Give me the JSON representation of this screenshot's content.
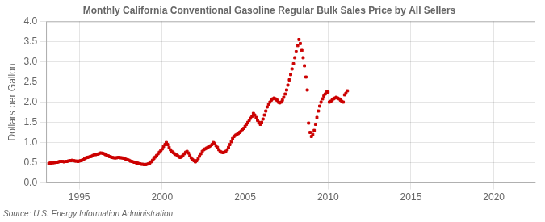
{
  "chart_data": {
    "type": "scatter",
    "title": "Monthly California Conventional Gasoline Regular Bulk Sales Price by All Sellers",
    "y_label": "Dollars per Gallon",
    "annotations": [
      "Source: U.S. Energy Information Administration"
    ],
    "color": "#cc0000",
    "marker": "square",
    "grid": true,
    "xlim": [
      1993.0,
      2022.5
    ],
    "ylim": [
      0.0,
      4.0
    ],
    "xticks": [
      1995,
      2000,
      2005,
      2010,
      2015,
      2020
    ],
    "yticks": [
      {
        "value": 0.0,
        "label": "0.0"
      },
      0.5,
      {
        "value": 1.0,
        "label": "1.0"
      },
      1.5,
      {
        "value": 2.0,
        "label": "2.0"
      },
      2.5,
      {
        "value": 3.0,
        "label": "3.0"
      },
      3.5,
      {
        "value": 4.0,
        "label": "4.0"
      }
    ],
    "x": [
      1993.17,
      1993.25,
      1993.33,
      1993.42,
      1993.5,
      1993.58,
      1993.67,
      1993.75,
      1993.83,
      1993.92,
      1994.0,
      1994.08,
      1994.17,
      1994.25,
      1994.33,
      1994.42,
      1994.5,
      1994.58,
      1994.67,
      1994.75,
      1994.83,
      1994.92,
      1995.0,
      1995.08,
      1995.17,
      1995.25,
      1995.33,
      1995.42,
      1995.5,
      1995.58,
      1995.67,
      1995.75,
      1995.83,
      1995.92,
      1996.0,
      1996.08,
      1996.17,
      1996.25,
      1996.33,
      1996.42,
      1996.5,
      1996.58,
      1996.67,
      1996.75,
      1996.83,
      1996.92,
      1997.0,
      1997.08,
      1997.17,
      1997.25,
      1997.33,
      1997.42,
      1997.5,
      1997.58,
      1997.67,
      1997.75,
      1997.83,
      1997.92,
      1998.0,
      1998.08,
      1998.17,
      1998.25,
      1998.33,
      1998.42,
      1998.5,
      1998.58,
      1998.67,
      1998.75,
      1998.83,
      1998.92,
      1999.0,
      1999.08,
      1999.17,
      1999.25,
      1999.33,
      1999.42,
      1999.5,
      1999.58,
      1999.67,
      1999.75,
      1999.83,
      1999.92,
      2000.0,
      2000.08,
      2000.17,
      2000.25,
      2000.33,
      2000.42,
      2000.5,
      2000.58,
      2000.67,
      2000.75,
      2000.83,
      2000.92,
      2001.0,
      2001.08,
      2001.17,
      2001.25,
      2001.33,
      2001.42,
      2001.5,
      2001.58,
      2001.67,
      2001.75,
      2001.83,
      2001.92,
      2002.0,
      2002.08,
      2002.17,
      2002.25,
      2002.33,
      2002.42,
      2002.5,
      2002.58,
      2002.67,
      2002.75,
      2002.83,
      2002.92,
      2003.0,
      2003.08,
      2003.17,
      2003.25,
      2003.33,
      2003.42,
      2003.5,
      2003.58,
      2003.67,
      2003.75,
      2003.83,
      2003.92,
      2004.0,
      2004.08,
      2004.17,
      2004.25,
      2004.33,
      2004.42,
      2004.5,
      2004.58,
      2004.67,
      2004.75,
      2004.83,
      2004.92,
      2005.0,
      2005.08,
      2005.17,
      2005.25,
      2005.33,
      2005.42,
      2005.5,
      2005.58,
      2005.67,
      2005.75,
      2005.83,
      2005.92,
      2006.0,
      2006.08,
      2006.17,
      2006.25,
      2006.33,
      2006.42,
      2006.5,
      2006.58,
      2006.67,
      2006.75,
      2006.83,
      2006.92,
      2007.0,
      2007.08,
      2007.17,
      2007.25,
      2007.33,
      2007.42,
      2007.5,
      2007.58,
      2007.67,
      2007.75,
      2007.83,
      2007.92,
      2008.0,
      2008.08,
      2008.17,
      2008.25,
      2008.33,
      2008.42,
      2008.5,
      2008.58,
      2008.67,
      2008.75,
      2008.83,
      2008.92,
      2009.0,
      2009.08,
      2009.17,
      2009.25,
      2009.33,
      2009.42,
      2009.5,
      2009.58,
      2009.67,
      2009.75,
      2009.83,
      2009.92,
      2010.0,
      2010.08,
      2010.17,
      2010.25,
      2010.33,
      2010.42,
      2010.5,
      2010.58,
      2010.67,
      2010.75,
      2010.83,
      2010.92,
      2011.0,
      2011.08,
      2011.17
    ],
    "values": [
      0.48,
      0.49,
      0.49,
      0.5,
      0.5,
      0.51,
      0.51,
      0.52,
      0.53,
      0.53,
      0.53,
      0.52,
      0.53,
      0.53,
      0.54,
      0.55,
      0.55,
      0.56,
      0.55,
      0.54,
      0.54,
      0.53,
      0.54,
      0.55,
      0.56,
      0.57,
      0.6,
      0.62,
      0.63,
      0.64,
      0.65,
      0.66,
      0.68,
      0.7,
      0.7,
      0.71,
      0.72,
      0.74,
      0.74,
      0.73,
      0.72,
      0.7,
      0.68,
      0.67,
      0.65,
      0.64,
      0.63,
      0.62,
      0.62,
      0.62,
      0.63,
      0.63,
      0.62,
      0.62,
      0.61,
      0.6,
      0.58,
      0.57,
      0.56,
      0.54,
      0.53,
      0.52,
      0.51,
      0.5,
      0.49,
      0.48,
      0.47,
      0.46,
      0.46,
      0.45,
      0.45,
      0.46,
      0.47,
      0.49,
      0.52,
      0.56,
      0.6,
      0.64,
      0.68,
      0.72,
      0.76,
      0.8,
      0.84,
      0.9,
      0.95,
      1.0,
      0.95,
      0.88,
      0.82,
      0.78,
      0.75,
      0.72,
      0.7,
      0.68,
      0.65,
      0.63,
      0.65,
      0.68,
      0.72,
      0.76,
      0.78,
      0.74,
      0.68,
      0.62,
      0.58,
      0.55,
      0.52,
      0.55,
      0.6,
      0.66,
      0.72,
      0.78,
      0.82,
      0.84,
      0.86,
      0.88,
      0.9,
      0.92,
      0.95,
      1.0,
      0.98,
      0.92,
      0.88,
      0.82,
      0.78,
      0.76,
      0.75,
      0.76,
      0.78,
      0.82,
      0.88,
      0.95,
      1.02,
      1.1,
      1.15,
      1.18,
      1.2,
      1.22,
      1.25,
      1.28,
      1.32,
      1.35,
      1.4,
      1.45,
      1.5,
      1.55,
      1.6,
      1.65,
      1.72,
      1.68,
      1.62,
      1.55,
      1.5,
      1.45,
      1.5,
      1.58,
      1.68,
      1.78,
      1.88,
      1.95,
      2.0,
      2.05,
      2.08,
      2.1,
      2.08,
      2.05,
      2.0,
      1.98,
      2.0,
      2.05,
      2.12,
      2.2,
      2.3,
      2.42,
      2.55,
      2.68,
      2.82,
      2.95,
      3.1,
      3.25,
      3.4,
      3.55,
      3.45,
      3.28,
      3.1,
      2.9,
      2.62,
      2.3,
      1.48,
      1.25,
      1.15,
      1.2,
      1.3,
      1.45,
      1.62,
      1.78,
      1.9,
      2.0,
      2.08,
      2.15,
      2.2,
      2.25,
      2.25,
      2.0,
      2.02,
      2.05,
      2.08,
      2.1,
      2.12,
      2.1,
      2.08,
      2.05,
      2.02,
      2.0,
      2.18,
      2.22,
      2.28
    ]
  }
}
